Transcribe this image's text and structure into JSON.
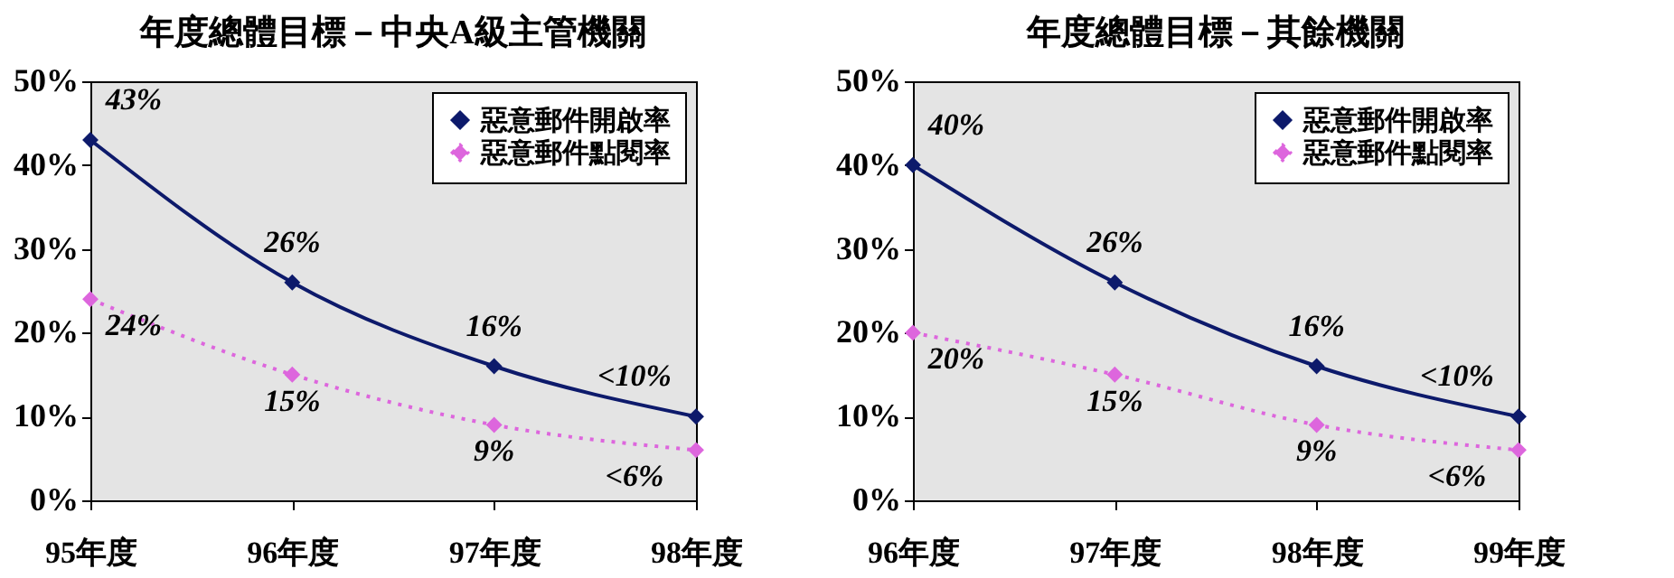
{
  "chart_data": [
    {
      "type": "line",
      "title": "年度總體目標－中央A級主管機關",
      "categories": [
        "95年度",
        "96年度",
        "97年度",
        "98年度"
      ],
      "ylim": [
        0,
        50
      ],
      "yticks": [
        {
          "value": 0,
          "label": "0%"
        },
        {
          "value": 10,
          "label": "10%"
        },
        {
          "value": 20,
          "label": "20%"
        },
        {
          "value": 30,
          "label": "30%"
        },
        {
          "value": 40,
          "label": "40%"
        },
        {
          "value": 50,
          "label": "50%"
        }
      ],
      "grid": false,
      "legend": "top right",
      "marker": "diamond",
      "series": [
        {
          "name": "惡意郵件開啟率",
          "color": "#0d1a6b",
          "line_style": "solid",
          "values": [
            43,
            26,
            16,
            10
          ],
          "value_labels": [
            "43%",
            "26%",
            "16%",
            "<10%"
          ]
        },
        {
          "name": "惡意郵件點閱率",
          "color": "#dd66dd",
          "line_style": "dotted",
          "values": [
            24,
            15,
            9,
            6
          ],
          "value_labels": [
            "24%",
            "15%",
            "9%",
            "<6%"
          ]
        }
      ]
    },
    {
      "type": "line",
      "title": "年度總體目標－其餘機關",
      "categories": [
        "96年度",
        "97年度",
        "98年度",
        "99年度"
      ],
      "ylim": [
        0,
        50
      ],
      "yticks": [
        {
          "value": 0,
          "label": "0%"
        },
        {
          "value": 10,
          "label": "10%"
        },
        {
          "value": 20,
          "label": "20%"
        },
        {
          "value": 30,
          "label": "30%"
        },
        {
          "value": 40,
          "label": "40%"
        },
        {
          "value": 50,
          "label": "50%"
        }
      ],
      "grid": false,
      "legend": "top right",
      "marker": "diamond",
      "series": [
        {
          "name": "惡意郵件開啟率",
          "color": "#0d1a6b",
          "line_style": "solid",
          "values": [
            40,
            26,
            16,
            10
          ],
          "value_labels": [
            "40%",
            "26%",
            "16%",
            "<10%"
          ]
        },
        {
          "name": "惡意郵件點閱率",
          "color": "#dd66dd",
          "line_style": "dotted",
          "values": [
            20,
            15,
            9,
            6
          ],
          "value_labels": [
            "20%",
            "15%",
            "9%",
            "<6%"
          ]
        }
      ]
    }
  ]
}
